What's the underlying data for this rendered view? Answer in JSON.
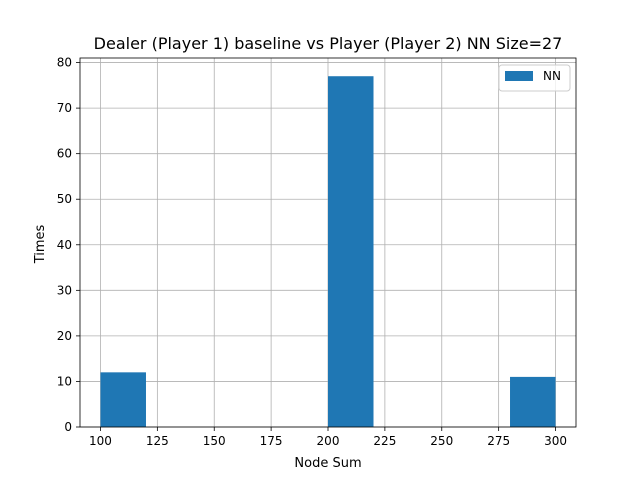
{
  "chart_data": {
    "type": "bar",
    "title": "Dealer (Player 1) baseline vs Player (Player 2) NN Size=27",
    "xlabel": "Node Sum",
    "ylabel": "Times",
    "xlim": [
      91,
      309
    ],
    "ylim": [
      0,
      81
    ],
    "xticks": [
      100,
      125,
      150,
      175,
      200,
      225,
      250,
      275,
      300
    ],
    "yticks": [
      0,
      10,
      20,
      30,
      40,
      50,
      60,
      70,
      80
    ],
    "grid": true,
    "legend_position": "top-right",
    "series": [
      {
        "name": "NN",
        "color": "#1f77b4",
        "bins": [
          {
            "x0": 100,
            "x1": 120,
            "value": 12
          },
          {
            "x0": 120,
            "x1": 140,
            "value": 0
          },
          {
            "x0": 140,
            "x1": 160,
            "value": 0
          },
          {
            "x0": 160,
            "x1": 180,
            "value": 0
          },
          {
            "x0": 180,
            "x1": 200,
            "value": 0
          },
          {
            "x0": 200,
            "x1": 220,
            "value": 77
          },
          {
            "x0": 220,
            "x1": 240,
            "value": 0
          },
          {
            "x0": 240,
            "x1": 260,
            "value": 0
          },
          {
            "x0": 260,
            "x1": 280,
            "value": 0
          },
          {
            "x0": 280,
            "x1": 300,
            "value": 11
          }
        ]
      }
    ]
  }
}
